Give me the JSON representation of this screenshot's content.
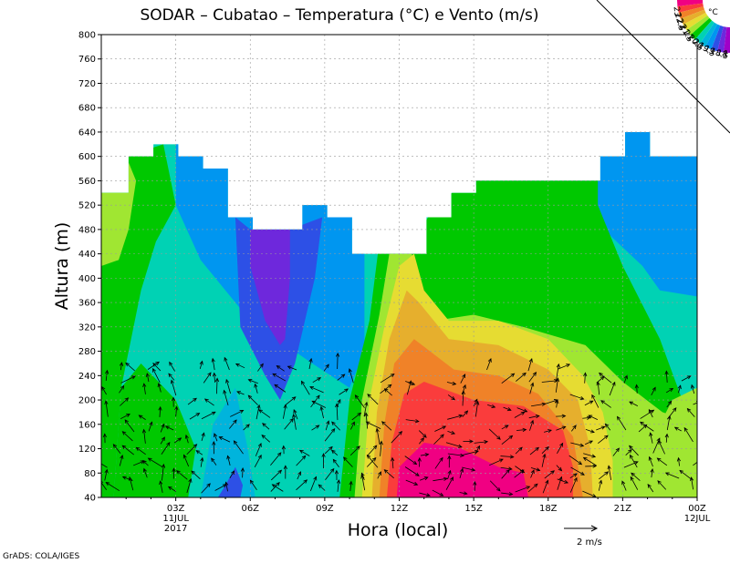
{
  "chart_data": {
    "type": "heatmap",
    "title": "SODAR – Cubatao – Temperatura (°C) e Vento (m/s)",
    "xlabel": "Hora (local)",
    "ylabel": "Altura (m)",
    "ylim": [
      40,
      800
    ],
    "y_ticks": [
      "40",
      "80",
      "120",
      "160",
      "200",
      "240",
      "280",
      "320",
      "360",
      "400",
      "440",
      "480",
      "520",
      "560",
      "600",
      "640",
      "680",
      "720",
      "760",
      "800"
    ],
    "x_ticks": [
      {
        "hour": 3,
        "label": "03Z",
        "date": "11JUL",
        "year": "2017"
      },
      {
        "hour": 6,
        "label": "06Z",
        "date": "",
        "year": ""
      },
      {
        "hour": 9,
        "label": "09Z",
        "date": "",
        "year": ""
      },
      {
        "hour": 12,
        "label": "12Z",
        "date": "",
        "year": ""
      },
      {
        "hour": 15,
        "label": "15Z",
        "date": "",
        "year": ""
      },
      {
        "hour": 18,
        "label": "18Z",
        "date": "",
        "year": ""
      },
      {
        "hour": 21,
        "label": "21Z",
        "date": "",
        "year": ""
      },
      {
        "hour": 24,
        "label": "00Z",
        "date": "12JUL",
        "year": ""
      }
    ],
    "xlim_hours": [
      0,
      24
    ],
    "colorbar": {
      "unit": "°C",
      "levels": [
        "17.5",
        "18",
        "18.5",
        "19",
        "19.5",
        "20",
        "20.5",
        "21",
        "21.5",
        "22",
        "22.5",
        "23"
      ],
      "colors": [
        "#a000c8",
        "#6e28dc",
        "#2d50e6",
        "#0096f0",
        "#00b4dc",
        "#00d2b4",
        "#00c800",
        "#a0e632",
        "#e6dc32",
        "#e6af2d",
        "#f08228",
        "#fa3c3c",
        "#f00082"
      ]
    },
    "profile_top_m": [
      {
        "hour": 0.0,
        "top": 540
      },
      {
        "hour": 1.1,
        "top": 600
      },
      {
        "hour": 2.1,
        "top": 620
      },
      {
        "hour": 3.1,
        "top": 600
      },
      {
        "hour": 4.1,
        "top": 580
      },
      {
        "hour": 5.1,
        "top": 500
      },
      {
        "hour": 6.1,
        "top": 480
      },
      {
        "hour": 8.1,
        "top": 520
      },
      {
        "hour": 9.1,
        "top": 500
      },
      {
        "hour": 10.1,
        "top": 440
      },
      {
        "hour": 13.1,
        "top": 500
      },
      {
        "hour": 14.1,
        "top": 540
      },
      {
        "hour": 15.1,
        "top": 560
      },
      {
        "hour": 20.1,
        "top": 600
      },
      {
        "hour": 21.1,
        "top": 640
      },
      {
        "hour": 22.1,
        "top": 600
      },
      {
        "hour": 24.0,
        "top": 600
      }
    ],
    "wind_reference": {
      "speed_ms": 2,
      "label": "2  m/s"
    },
    "credit": "GrADS: COLA/IGES"
  }
}
